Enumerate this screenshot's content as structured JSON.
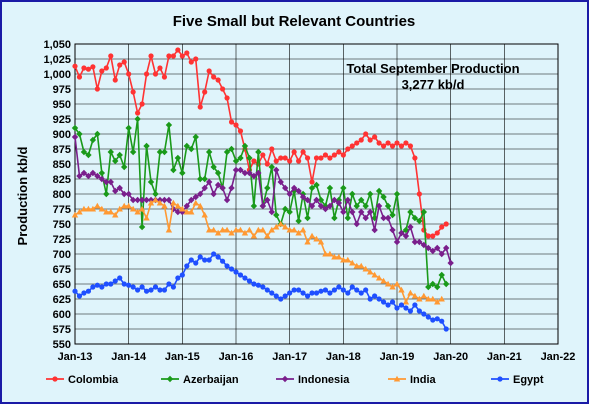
{
  "chart_data": {
    "type": "line",
    "title": "Five Small but Relevant Countries",
    "annotation": [
      "Total September Production",
      "3,277 kb/d"
    ],
    "ylabel": "Production kb/d",
    "xlabel": "",
    "ylim": [
      550,
      1050
    ],
    "ytick_step": 25,
    "x_ticks": [
      "Jan-13",
      "Jan-14",
      "Jan-15",
      "Jan-16",
      "Jan-17",
      "Jan-18",
      "Jan-19",
      "Jan-20",
      "Jan-21",
      "Jan-22"
    ],
    "xlim_months": [
      0,
      108
    ],
    "grid": true,
    "legend_position": "bottom",
    "start": "Jan-13",
    "series": [
      {
        "name": "Colombia",
        "color": "#ff3333",
        "marker": "circle",
        "values": [
          1013,
          995,
          1010,
          1008,
          1012,
          975,
          1005,
          1010,
          1030,
          990,
          1015,
          1020,
          1000,
          970,
          935,
          950,
          1000,
          1030,
          1000,
          1010,
          995,
          1030,
          1030,
          1040,
          1030,
          1035,
          1020,
          1025,
          945,
          970,
          1005,
          995,
          990,
          975,
          960,
          920,
          915,
          905,
          875,
          840,
          855,
          850,
          865,
          850,
          875,
          855,
          860,
          860,
          855,
          870,
          855,
          870,
          860,
          820,
          860,
          860,
          865,
          860,
          865,
          870,
          865,
          875,
          880,
          885,
          890,
          900,
          890,
          895,
          885,
          880,
          885,
          880,
          885,
          880,
          885,
          880,
          860,
          800,
          740,
          730,
          730,
          735,
          745,
          750
        ]
      },
      {
        "name": "Azerbaijan",
        "color": "#1a9a1a",
        "marker": "diamond",
        "values": [
          910,
          900,
          870,
          865,
          890,
          900,
          835,
          800,
          870,
          855,
          865,
          845,
          910,
          870,
          925,
          745,
          880,
          820,
          800,
          870,
          870,
          915,
          840,
          860,
          835,
          880,
          875,
          895,
          825,
          825,
          870,
          845,
          835,
          810,
          870,
          875,
          855,
          860,
          880,
          860,
          780,
          870,
          780,
          810,
          845,
          765,
          750,
          775,
          770,
          805,
          755,
          800,
          760,
          810,
          815,
          790,
          780,
          810,
          760,
          790,
          810,
          760,
          800,
          780,
          790,
          780,
          800,
          760,
          805,
          795,
          780,
          765,
          800,
          735,
          740,
          770,
          760,
          755,
          770,
          645,
          650,
          645,
          665,
          650
        ]
      },
      {
        "name": "Indonesia",
        "color": "#7a1f8c",
        "marker": "diamond",
        "values": [
          895,
          830,
          835,
          830,
          835,
          830,
          825,
          820,
          820,
          805,
          810,
          800,
          800,
          790,
          790,
          790,
          790,
          790,
          790,
          790,
          790,
          790,
          775,
          770,
          770,
          780,
          790,
          795,
          800,
          810,
          820,
          800,
          815,
          810,
          790,
          810,
          840,
          840,
          835,
          835,
          830,
          835,
          780,
          790,
          770,
          840,
          820,
          810,
          800,
          810,
          805,
          795,
          790,
          780,
          790,
          780,
          775,
          780,
          790,
          785,
          770,
          790,
          770,
          750,
          770,
          760,
          770,
          740,
          780,
          760,
          760,
          740,
          720,
          735,
          730,
          745,
          720,
          720,
          715,
          710,
          705,
          710,
          700,
          710,
          685
        ]
      },
      {
        "name": "India",
        "color": "#ff9933",
        "marker": "triangle",
        "values": [
          765,
          770,
          775,
          775,
          775,
          780,
          775,
          770,
          770,
          765,
          775,
          780,
          780,
          775,
          770,
          775,
          760,
          785,
          790,
          785,
          780,
          740,
          785,
          780,
          775,
          770,
          770,
          785,
          780,
          765,
          740,
          740,
          735,
          740,
          740,
          735,
          740,
          740,
          735,
          740,
          730,
          740,
          740,
          730,
          740,
          745,
          750,
          745,
          740,
          740,
          735,
          740,
          720,
          730,
          725,
          720,
          700,
          700,
          695,
          695,
          690,
          690,
          685,
          680,
          680,
          675,
          670,
          665,
          660,
          655,
          650,
          645,
          650,
          640,
          620,
          635,
          630,
          625,
          630,
          625,
          625,
          620,
          625
        ]
      },
      {
        "name": "Egypt",
        "color": "#1f4fff",
        "marker": "circle",
        "values": [
          638,
          630,
          635,
          638,
          645,
          648,
          645,
          650,
          650,
          655,
          660,
          650,
          648,
          645,
          640,
          645,
          638,
          640,
          645,
          640,
          640,
          650,
          645,
          660,
          665,
          680,
          690,
          685,
          695,
          690,
          690,
          700,
          695,
          688,
          680,
          675,
          670,
          665,
          660,
          655,
          650,
          648,
          645,
          640,
          635,
          630,
          625,
          630,
          635,
          640,
          640,
          635,
          630,
          635,
          635,
          638,
          640,
          635,
          640,
          645,
          640,
          635,
          645,
          640,
          635,
          640,
          625,
          630,
          625,
          620,
          615,
          620,
          610,
          615,
          610,
          605,
          615,
          605,
          600,
          595,
          590,
          592,
          588,
          575
        ]
      }
    ]
  }
}
